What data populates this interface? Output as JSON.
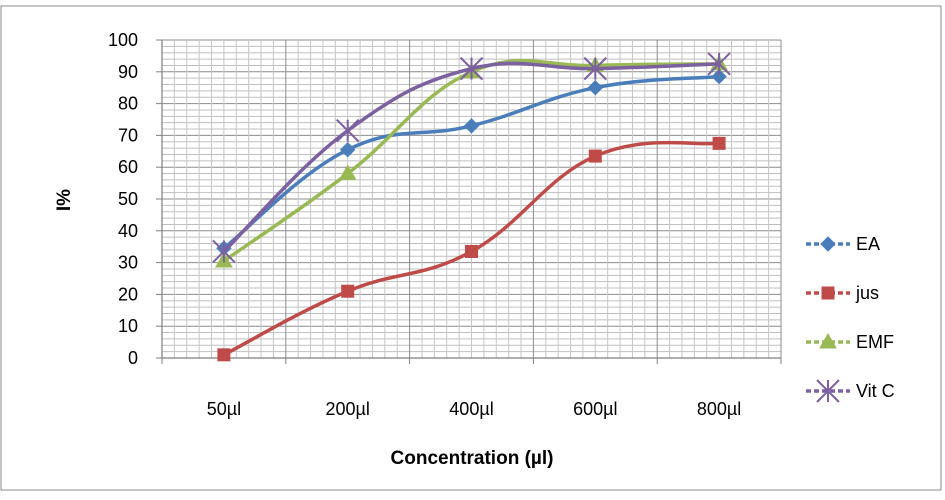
{
  "chart_data": {
    "type": "line",
    "title": "",
    "xlabel": "Concentration (µl)",
    "ylabel": "I%",
    "categories": [
      "50µl",
      "200µl",
      "400µl",
      "600µl",
      "800µl"
    ],
    "ylim": [
      0,
      100
    ],
    "yticks": [
      "0",
      "10",
      "20",
      "30",
      "40",
      "50",
      "60",
      "70",
      "80",
      "90",
      "100"
    ],
    "grid": true,
    "legend_position": "right",
    "series": [
      {
        "name": "EA",
        "values": [
          34.5,
          65.5,
          73,
          85,
          88.5
        ],
        "color": "#4a7ebb",
        "marker": "diamond"
      },
      {
        "name": "jus",
        "values": [
          1,
          21,
          33.5,
          63.5,
          67.5
        ],
        "color": "#be4b48",
        "marker": "square"
      },
      {
        "name": "EMF",
        "values": [
          30.5,
          58,
          90,
          92,
          92.5
        ],
        "color": "#98b954",
        "marker": "triangle"
      },
      {
        "name": "Vit C",
        "values": [
          33.5,
          71.5,
          91,
          91,
          92.5
        ],
        "color": "#7d60a0",
        "marker": "star"
      }
    ]
  }
}
